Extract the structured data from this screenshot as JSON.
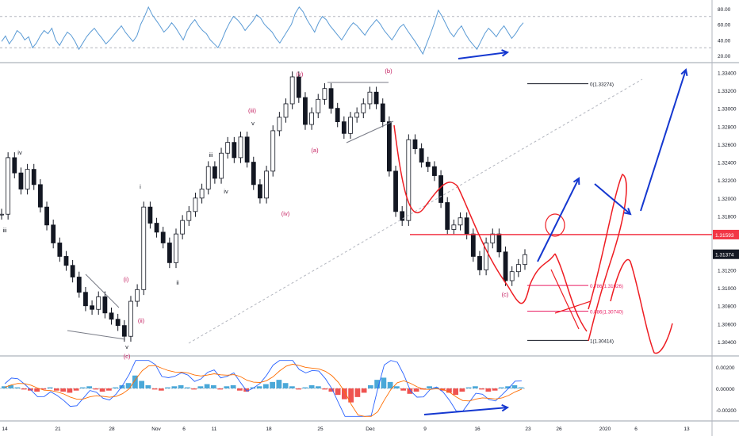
{
  "instrument_colors": {
    "candle": "#131722",
    "rsi_line": "#5b9bd5",
    "price_line": "#f23645",
    "label_pink": "#c2185b",
    "projection_red": "#ee1d23",
    "projection_blue": "#1538d0",
    "fib_pink": "#e91e63",
    "macd_pos": "#4aa8d8",
    "macd_neg": "#ef5350",
    "macd_line": "#2962ff",
    "signal_line": "#ff6d00"
  },
  "chart_data": [
    {
      "type": "line",
      "panel": "rsi",
      "ylim": [
        12,
        88
      ],
      "yticks": [
        "80.00",
        "60.00",
        "40.00",
        "20.00"
      ],
      "ytick_values": [
        80,
        60,
        40,
        20
      ],
      "levels": [
        70,
        30
      ],
      "series": [
        {
          "values": [
            38,
            45,
            35,
            42,
            52,
            48,
            40,
            44,
            30,
            36,
            45,
            52,
            48,
            55,
            40,
            33,
            42,
            50,
            46,
            38,
            28,
            36,
            44,
            50,
            55,
            48,
            42,
            35,
            40,
            46,
            52,
            58,
            50,
            44,
            38,
            45,
            60,
            70,
            82,
            72,
            65,
            58,
            50,
            55,
            62,
            56,
            48,
            40,
            52,
            60,
            66,
            58,
            52,
            48,
            40,
            35,
            30,
            40,
            52,
            62,
            70,
            66,
            60,
            52,
            58,
            64,
            72,
            68,
            60,
            55,
            50,
            42,
            36,
            44,
            52,
            60,
            74,
            82,
            76,
            66,
            58,
            50,
            62,
            70,
            66,
            58,
            52,
            46,
            40,
            48,
            56,
            62,
            58,
            52,
            46,
            54,
            60,
            66,
            60,
            52,
            46,
            40,
            48,
            56,
            60,
            52,
            45,
            38,
            30,
            22,
            35,
            48,
            62,
            78,
            70,
            60,
            50,
            44,
            52,
            58,
            48,
            40,
            34,
            28,
            38,
            48,
            55,
            50,
            44,
            52,
            58,
            50,
            42,
            48,
            56,
            62
          ]
        }
      ]
    },
    {
      "type": "candlestick",
      "panel": "price",
      "ylim": [
        1.3025,
        1.335
      ],
      "yticks": [
        "1.33400",
        "1.33200",
        "1.33000",
        "1.32800",
        "1.32600",
        "1.32400",
        "1.32200",
        "1.32000",
        "1.31800",
        "1.31600",
        "1.31400",
        "1.31200",
        "1.31000",
        "1.30800",
        "1.30600",
        "1.30400"
      ],
      "ytick_values": [
        1.334,
        1.332,
        1.33,
        1.328,
        1.326,
        1.324,
        1.322,
        1.32,
        1.318,
        1.316,
        1.314,
        1.312,
        1.31,
        1.308,
        1.306,
        1.304
      ],
      "x_labels": [
        "14",
        "21",
        "28",
        "Nov",
        "6",
        "11",
        "18",
        "25",
        "Dec",
        "9",
        "16",
        "23",
        "26",
        "2020",
        "6",
        "13"
      ],
      "closes": [
        1.3182,
        1.3245,
        1.3228,
        1.321,
        1.3232,
        1.3215,
        1.319,
        1.317,
        1.315,
        1.3135,
        1.3125,
        1.3112,
        1.3095,
        1.308,
        1.3076,
        1.309,
        1.3072,
        1.3065,
        1.3058,
        1.3046,
        1.3085,
        1.3098,
        1.319,
        1.3172,
        1.3162,
        1.315,
        1.3128,
        1.316,
        1.3175,
        1.3185,
        1.32,
        1.321,
        1.3235,
        1.3222,
        1.325,
        1.3262,
        1.3245,
        1.3268,
        1.324,
        1.3215,
        1.32,
        1.323,
        1.3275,
        1.329,
        1.3305,
        1.3335,
        1.3312,
        1.3282,
        1.3295,
        1.331,
        1.3322,
        1.33,
        1.3285,
        1.3272,
        1.329,
        1.3295,
        1.3305,
        1.3318,
        1.3305,
        1.3285,
        1.323,
        1.3185,
        1.3175,
        1.3265,
        1.3255,
        1.324,
        1.3235,
        1.3225,
        1.3195,
        1.3165,
        1.317,
        1.3178,
        1.316,
        1.3135,
        1.312,
        1.315,
        1.316,
        1.314,
        1.3108,
        1.3118,
        1.3126,
        1.3137
      ],
      "last_price": "1.31374",
      "last_price_value": 1.31374,
      "horizontal_level": "1.31593",
      "horizontal_level_value": 1.31593,
      "wave_labels": [
        "iii",
        "iv",
        "v",
        "i",
        "ii",
        "iii",
        "iv",
        "v",
        "(i)",
        "(ii)",
        "(iii)",
        "(iv)",
        "(v)",
        "(a)",
        "(b)",
        "(c)",
        "(c)",
        "v"
      ],
      "fib_levels": [
        {
          "label": "0(1.33274)",
          "value": 1.33274
        },
        {
          "label": "0.786(1.31026)",
          "value": 1.31026
        },
        {
          "label": "0.886(1.30740)",
          "value": 1.3074
        },
        {
          "label": "1(1.30414)",
          "value": 1.30414
        }
      ]
    },
    {
      "type": "bar",
      "panel": "macd",
      "ylim": [
        -0.0028,
        0.0028
      ],
      "yticks": [
        "0.00200",
        "0.00000",
        "-0.00200"
      ],
      "ytick_values": [
        0.002,
        0.0,
        -0.002
      ],
      "values": [
        0.0002,
        0.0003,
        0.0001,
        -0.0001,
        -0.0002,
        -0.0003,
        -0.0001,
        0.0001,
        -0.0002,
        -0.0003,
        -0.0004,
        -0.0002,
        0.0001,
        0.0002,
        -0.0001,
        -0.0003,
        -0.0002,
        0.0001,
        0.0003,
        0.0005,
        0.0012,
        0.0007,
        0.0003,
        -0.0001,
        -0.0002,
        0.0001,
        0.0002,
        0.0003,
        0.0001,
        -0.0001,
        0.0002,
        0.0004,
        0.0003,
        -0.0001,
        0.0002,
        0.0003,
        -0.0002,
        -0.0003,
        0.0001,
        0.0002,
        0.0004,
        0.0006,
        0.0008,
        0.0005,
        0.0002,
        -0.0001,
        0.0001,
        0.0003,
        0.0002,
        -0.0001,
        -0.0003,
        -0.0006,
        -0.001,
        -0.0013,
        -0.0008,
        -0.0004,
        0.0003,
        0.0008,
        0.001,
        0.0006,
        0.0002,
        -0.0002,
        -0.0005,
        -0.0003,
        -0.0001,
        0.0002,
        0.0001,
        -0.0002,
        -0.0004,
        -0.0006,
        -0.0003,
        0.0001,
        0.0002,
        -0.0001,
        -0.0003,
        -0.0002,
        0.0001,
        0.0002,
        0.0003,
        0.0001
      ]
    }
  ]
}
